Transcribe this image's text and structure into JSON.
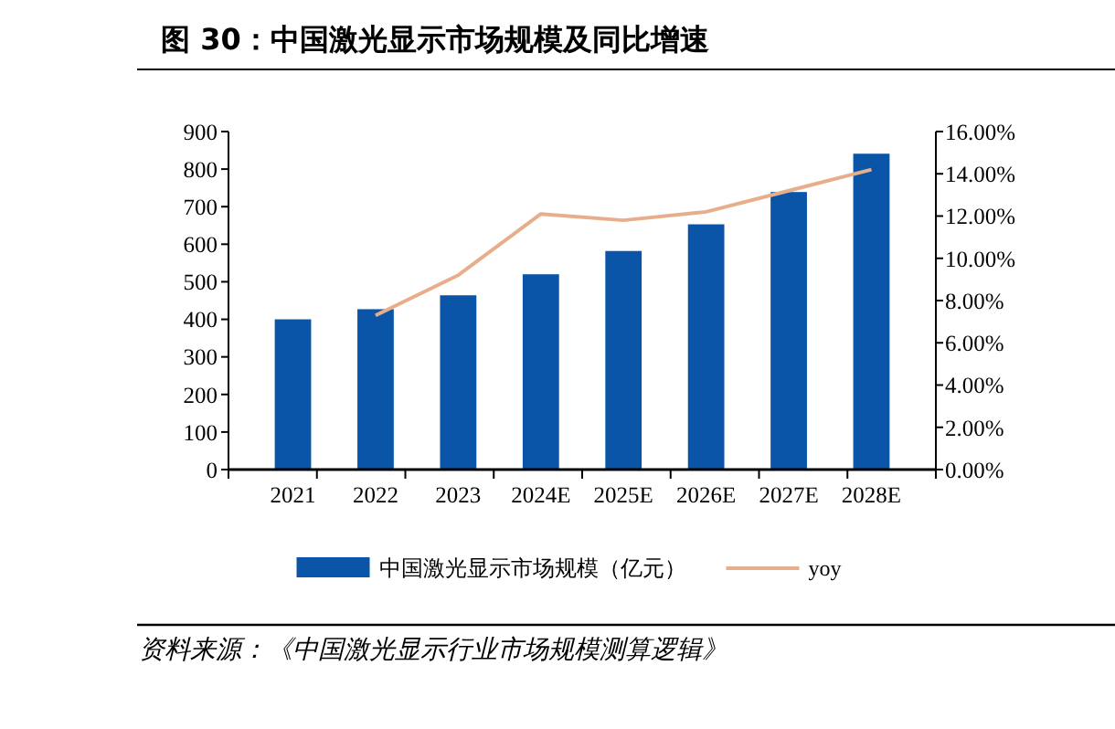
{
  "chart_data": {
    "type": "bar",
    "title": "图 30：中国激光显示市场规模及同比增速",
    "categories": [
      "2021",
      "2022",
      "2023",
      "2024E",
      "2025E",
      "2026E",
      "2027E",
      "2028E"
    ],
    "series": [
      {
        "name": "中国激光显示市场规模（亿元）",
        "color": "#0b55a8",
        "values": [
          400,
          427,
          464,
          520,
          582,
          653,
          739,
          841
        ]
      },
      {
        "name": "yoy",
        "type": "line",
        "axis": "y2",
        "color": "#e8ae8c",
        "values": [
          null,
          7.3,
          9.2,
          12.1,
          11.8,
          12.2,
          13.2,
          14.2
        ]
      }
    ],
    "ylim": [
      0,
      900
    ],
    "yticks": [
      0,
      100,
      200,
      300,
      400,
      500,
      600,
      700,
      800,
      900
    ],
    "y2lim": [
      0,
      16
    ],
    "y2ticks": [
      {
        "value": 0,
        "label": "0.00%"
      },
      {
        "value": 2,
        "label": "2.00%"
      },
      {
        "value": 4,
        "label": "4.00%"
      },
      {
        "value": 6,
        "label": "6.00%"
      },
      {
        "value": 8,
        "label": "8.00%"
      },
      {
        "value": 10,
        "label": "10.00%"
      },
      {
        "value": 12,
        "label": "12.00%"
      },
      {
        "value": 14,
        "label": "14.00%"
      },
      {
        "value": 16,
        "label": "16.00%"
      }
    ],
    "legend": "bottom",
    "grid": false,
    "annotations": [
      "资料来源：《中国激光显示行业市场规模测算逻辑》"
    ]
  }
}
